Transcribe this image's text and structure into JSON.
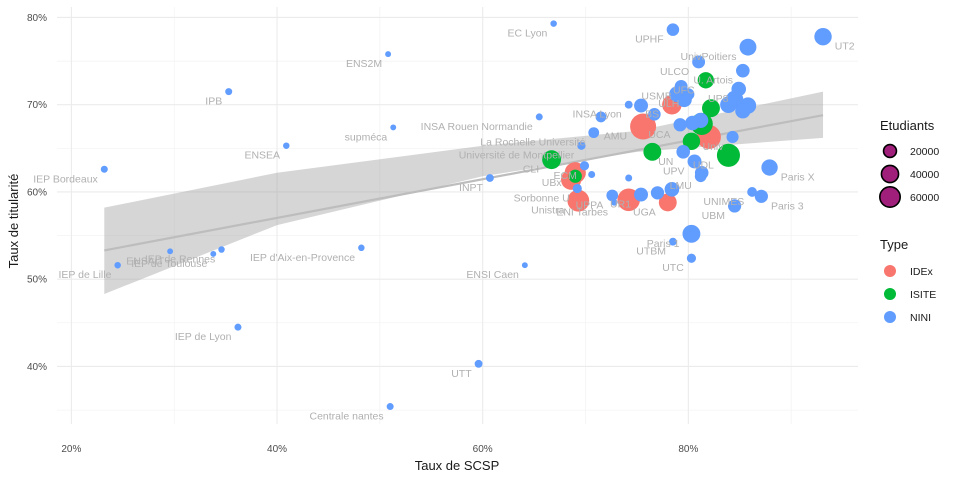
{
  "chart_data": {
    "type": "scatter",
    "xlabel": "Taux de SCSP",
    "ylabel": "Taux de titularité",
    "xlim": [
      18.6,
      96.5
    ],
    "ylim": [
      33.4,
      81.2
    ],
    "x_ticks": [
      {
        "value": 20,
        "label": "20%"
      },
      {
        "value": 40,
        "label": "40%"
      },
      {
        "value": 60,
        "label": "60%"
      },
      {
        "value": 80,
        "label": "80%"
      }
    ],
    "y_ticks": [
      {
        "value": 40,
        "label": "40%"
      },
      {
        "value": 50,
        "label": "50%"
      },
      {
        "value": 60,
        "label": "60%"
      },
      {
        "value": 70,
        "label": "70%"
      },
      {
        "value": 80,
        "label": "80%"
      }
    ],
    "grid": true,
    "trend": {
      "line": [
        [
          23.2,
          53.3
        ],
        [
          93.1,
          68.8
        ]
      ],
      "band_upper": [
        [
          23.2,
          58.2
        ],
        [
          40,
          62.2
        ],
        [
          60,
          65.3
        ],
        [
          75,
          67.0
        ],
        [
          93.1,
          71.5
        ]
      ],
      "band_lower": [
        [
          93.1,
          66.2
        ],
        [
          75,
          64.6
        ],
        [
          60,
          61.8
        ],
        [
          40,
          56.2
        ],
        [
          23.2,
          48.3
        ]
      ]
    },
    "series": [
      {
        "name": "IDEx",
        "color": "#f8766d",
        "points": [
          {
            "label": "BS",
            "x": 78.4,
            "y": 70.0,
            "size": 37000
          },
          {
            "label": "AMU",
            "x": 75.6,
            "y": 67.5,
            "size": 72000
          },
          {
            "label": "UBx",
            "x": 69.0,
            "y": 62.2,
            "size": 45000
          },
          {
            "label": "",
            "x": 68.6,
            "y": 61.4,
            "size": 40000
          },
          {
            "label": "Unistra",
            "x": 69.3,
            "y": 59.0,
            "size": 48000
          },
          {
            "label": "",
            "x": 74.2,
            "y": 59.1,
            "size": 52000
          },
          {
            "label": "UGA",
            "x": 78.0,
            "y": 58.8,
            "size": 30000
          },
          {
            "label": "",
            "x": 82.0,
            "y": 66.3,
            "size": 60000
          }
        ]
      },
      {
        "name": "ISITE",
        "color": "#00ba38",
        "points": [
          {
            "label": "UFC",
            "x": 81.7,
            "y": 72.8,
            "size": 24000
          },
          {
            "label": "",
            "x": 82.2,
            "y": 69.6,
            "size": 30000
          },
          {
            "label": "",
            "x": 81.3,
            "y": 67.8,
            "size": 50000
          },
          {
            "label": "CLI",
            "x": 66.7,
            "y": 63.7,
            "size": 34000
          },
          {
            "label": "",
            "x": 76.5,
            "y": 64.6,
            "size": 30000
          },
          {
            "label": "",
            "x": 80.3,
            "y": 65.8,
            "size": 28000
          },
          {
            "label": "UDL",
            "x": 83.9,
            "y": 64.2,
            "size": 55000
          },
          {
            "label": "",
            "x": 69.0,
            "y": 61.8,
            "size": 14000
          }
        ]
      },
      {
        "name": "NINI",
        "color": "#619cff",
        "points": [
          {
            "label": "EC Lyon",
            "x": 66.9,
            "y": 79.3,
            "size": 1500
          },
          {
            "label": "UPHF",
            "x": 78.5,
            "y": 78.6,
            "size": 12000
          },
          {
            "label": "UT2",
            "x": 93.1,
            "y": 77.8,
            "size": 28000
          },
          {
            "label": "UnivPoitiers",
            "x": 85.8,
            "y": 76.6,
            "size": 26000
          },
          {
            "label": "ULCO",
            "x": 81.0,
            "y": 74.9,
            "size": 13000
          },
          {
            "label": "U. Artois",
            "x": 85.3,
            "y": 73.9,
            "size": 15000
          },
          {
            "label": "USMB",
            "x": 79.3,
            "y": 72.1,
            "size": 13000
          },
          {
            "label": "ULH",
            "x": 80.0,
            "y": 71.2,
            "size": 11000
          },
          {
            "label": "UP8",
            "x": 84.9,
            "y": 71.8,
            "size": 18000
          },
          {
            "label": "",
            "x": 78.9,
            "y": 71.2,
            "size": 22000
          },
          {
            "label": "",
            "x": 79.6,
            "y": 70.6,
            "size": 20000
          },
          {
            "label": "",
            "x": 83.9,
            "y": 70.0,
            "size": 25000
          },
          {
            "label": "",
            "x": 84.5,
            "y": 70.6,
            "size": 28000
          },
          {
            "label": "",
            "x": 85.8,
            "y": 69.9,
            "size": 24000
          },
          {
            "label": "",
            "x": 85.3,
            "y": 69.3,
            "size": 20000
          },
          {
            "label": "INSA Lyon",
            "x": 74.2,
            "y": 70.0,
            "size": 3000
          },
          {
            "label": "",
            "x": 75.4,
            "y": 69.9,
            "size": 16000
          },
          {
            "label": "",
            "x": 76.7,
            "y": 68.9,
            "size": 12000
          },
          {
            "label": "",
            "x": 81.2,
            "y": 68.2,
            "size": 20000
          },
          {
            "label": "",
            "x": 80.4,
            "y": 67.9,
            "size": 18000
          },
          {
            "label": "UCA",
            "x": 79.2,
            "y": 67.7,
            "size": 14000
          },
          {
            "label": "Univ",
            "x": 84.3,
            "y": 66.3,
            "size": 11000
          },
          {
            "label": "INSA Rouen Normandie",
            "x": 65.5,
            "y": 68.6,
            "size": 2000
          },
          {
            "label": "La Rochelle Université",
            "x": 70.8,
            "y": 66.8,
            "size": 8000
          },
          {
            "label": "",
            "x": 71.5,
            "y": 68.6,
            "size": 8000
          },
          {
            "label": "Université de Montpellier",
            "x": 69.6,
            "y": 65.3,
            "size": 3500
          },
          {
            "label": "UN",
            "x": 79.5,
            "y": 64.6,
            "size": 15000
          },
          {
            "label": "UPV",
            "x": 80.6,
            "y": 63.5,
            "size": 16000
          },
          {
            "label": "",
            "x": 81.3,
            "y": 62.2,
            "size": 15000
          },
          {
            "label": "Paris X",
            "x": 87.9,
            "y": 62.8,
            "size": 24000
          },
          {
            "label": "LMU",
            "x": 81.2,
            "y": 61.8,
            "size": 10000
          },
          {
            "label": "UNIMES",
            "x": 86.2,
            "y": 60.0,
            "size": 6000
          },
          {
            "label": "Paris 3",
            "x": 87.1,
            "y": 59.5,
            "size": 14000
          },
          {
            "label": "UBM",
            "x": 84.5,
            "y": 58.4,
            "size": 14000
          },
          {
            "label": "ECM",
            "x": 69.9,
            "y": 63.0,
            "size": 5000
          },
          {
            "label": "INPT",
            "x": 60.7,
            "y": 61.6,
            "size": 3000
          },
          {
            "label": "",
            "x": 70.6,
            "y": 62.0,
            "size": 2000
          },
          {
            "label": "Sorbonne U",
            "x": 69.2,
            "y": 60.4,
            "size": 5000
          },
          {
            "label": "UPPA",
            "x": 72.6,
            "y": 59.6,
            "size": 10000
          },
          {
            "label": "UR1",
            "x": 75.4,
            "y": 59.7,
            "size": 16000
          },
          {
            "label": "",
            "x": 77.0,
            "y": 59.9,
            "size": 14000
          },
          {
            "label": "",
            "x": 78.4,
            "y": 60.3,
            "size": 18000
          },
          {
            "label": "",
            "x": 74.2,
            "y": 61.6,
            "size": 2000
          },
          {
            "label": "ENI Tarbes",
            "x": 72.8,
            "y": 58.8,
            "size": 1500
          },
          {
            "label": "Paris 1",
            "x": 80.3,
            "y": 55.2,
            "size": 30000
          },
          {
            "label": "UTBM",
            "x": 78.5,
            "y": 54.3,
            "size": 3000
          },
          {
            "label": "UTC",
            "x": 80.3,
            "y": 52.4,
            "size": 5000
          },
          {
            "label": "ENSI Caen",
            "x": 64.1,
            "y": 51.6,
            "size": 1000
          },
          {
            "label": "UTT",
            "x": 59.6,
            "y": 40.3,
            "size": 3000
          },
          {
            "label": "Centrale nantes",
            "x": 51.0,
            "y": 35.4,
            "size": 2000
          },
          {
            "label": "ENS2M",
            "x": 50.8,
            "y": 75.8,
            "size": 1000
          },
          {
            "label": "IPB",
            "x": 35.3,
            "y": 71.5,
            "size": 2000
          },
          {
            "label": "supméca",
            "x": 51.3,
            "y": 67.4,
            "size": 1000
          },
          {
            "label": "ENSEA",
            "x": 40.9,
            "y": 65.3,
            "size": 1500
          },
          {
            "label": "IEP Bordeaux",
            "x": 23.2,
            "y": 62.6,
            "size": 2000
          },
          {
            "label": "ENSAIT",
            "x": 29.6,
            "y": 53.2,
            "size": 1000
          },
          {
            "label": "IEP de Rennes",
            "x": 34.6,
            "y": 53.4,
            "size": 1500
          },
          {
            "label": "IEP de Toulouse",
            "x": 33.8,
            "y": 52.9,
            "size": 1000
          },
          {
            "label": "IEP de Lille",
            "x": 24.5,
            "y": 51.6,
            "size": 1500
          },
          {
            "label": "IEP d'Aix-en-Provence",
            "x": 48.2,
            "y": 53.6,
            "size": 1500
          },
          {
            "label": "IEP de Lyon",
            "x": 36.2,
            "y": 44.5,
            "size": 2000
          }
        ]
      }
    ],
    "legend": {
      "placement": "right",
      "size_title": "Etudiants",
      "size_entries": [
        {
          "label": "20000",
          "value": 20000
        },
        {
          "label": "40000",
          "value": 40000
        },
        {
          "label": "60000",
          "value": 60000
        }
      ],
      "type_title": "Type",
      "type_entries": [
        {
          "label": "IDEx",
          "color": "#f8766d"
        },
        {
          "label": "ISITE",
          "color": "#00ba38"
        },
        {
          "label": "NINI",
          "color": "#619cff"
        }
      ]
    }
  }
}
